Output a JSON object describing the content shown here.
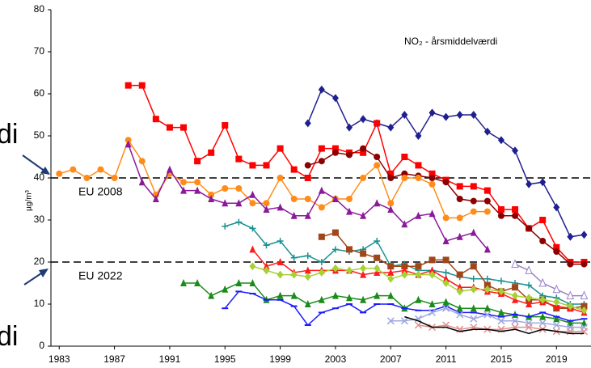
{
  "chart_data": {
    "type": "line",
    "title": "NO₂ - årsmiddelværdi",
    "y_label": "µg/m³",
    "annotations": [
      "di",
      "di"
    ],
    "hlines": [
      {
        "value": 40,
        "label": "EU 2008"
      },
      {
        "value": 20,
        "label": "EU 2022"
      }
    ],
    "xlim": [
      1982.4,
      2021.5
    ],
    "xticks": [
      1983,
      1987,
      1991,
      1995,
      1999,
      2003,
      2007,
      2011,
      2015,
      2019
    ],
    "ylim": [
      0,
      80
    ],
    "yticks": [
      0,
      10,
      20,
      30,
      40,
      50,
      60,
      70,
      80
    ],
    "x": [
      1983,
      1984,
      1985,
      1986,
      1987,
      1988,
      1989,
      1990,
      1991,
      1992,
      1993,
      1994,
      1995,
      1996,
      1997,
      1998,
      1999,
      2000,
      2001,
      2002,
      2003,
      2004,
      2005,
      2006,
      2007,
      2008,
      2009,
      2010,
      2011,
      2012,
      2013,
      2014,
      2015,
      2016,
      2017,
      2018,
      2019,
      2020,
      2021
    ],
    "series": [
      {
        "color": "#1f1f8f",
        "marker": "diamond",
        "values": [
          null,
          null,
          null,
          null,
          null,
          null,
          null,
          null,
          null,
          null,
          null,
          null,
          null,
          null,
          null,
          null,
          null,
          null,
          53,
          61,
          59,
          52,
          54,
          53,
          52,
          55,
          50,
          55.5,
          54.5,
          55,
          55,
          51,
          49,
          46.5,
          38.5,
          39,
          33,
          26,
          26.5
        ]
      },
      {
        "color": "#ff0000",
        "marker": "square",
        "values": [
          null,
          null,
          null,
          null,
          null,
          62,
          62,
          54,
          52,
          52,
          44,
          46,
          52.5,
          44.5,
          43,
          43,
          47,
          42,
          40,
          47,
          47,
          46,
          46,
          53,
          41,
          45,
          43,
          41,
          39.5,
          38,
          38,
          37,
          32.5,
          32.5,
          28,
          30,
          23.5,
          20,
          20
        ]
      },
      {
        "color": "#8b0000",
        "marker": "circle",
        "values": [
          null,
          null,
          null,
          null,
          null,
          null,
          null,
          null,
          null,
          null,
          null,
          null,
          null,
          null,
          null,
          null,
          null,
          null,
          43,
          44,
          46,
          45.5,
          47,
          45,
          40,
          41,
          40.5,
          40,
          39,
          35,
          34.5,
          34.5,
          31,
          31,
          28,
          25,
          22.5,
          19.5,
          19.5
        ]
      },
      {
        "color": "#ff8c1a",
        "marker": "circle",
        "values": [
          41,
          42,
          40,
          42,
          40,
          49,
          44,
          36,
          41,
          39,
          39,
          36,
          37.5,
          37.5,
          34,
          34,
          40,
          35,
          35,
          33,
          35,
          35,
          40,
          43,
          34,
          40,
          40,
          38.5,
          30.5,
          30.5,
          32,
          32,
          null,
          null,
          null,
          null,
          null,
          null,
          null
        ]
      },
      {
        "color": "#8b1a9b",
        "marker": "triangle",
        "values": [
          null,
          null,
          null,
          null,
          null,
          48,
          39,
          35,
          42,
          37,
          37,
          35,
          34,
          34,
          36,
          32.5,
          33,
          31,
          31,
          37,
          35,
          32,
          31,
          34,
          32.5,
          29,
          31,
          31.5,
          25,
          26,
          27,
          23,
          null,
          null,
          null,
          null,
          null,
          null,
          null
        ]
      },
      {
        "color": "#1a9090",
        "marker": "plus",
        "values": [
          null,
          null,
          null,
          null,
          null,
          null,
          null,
          null,
          null,
          null,
          null,
          null,
          28.5,
          29.5,
          28,
          24,
          25,
          21,
          21.5,
          20,
          23,
          22.5,
          23,
          25,
          19,
          19.5,
          18,
          18,
          17.5,
          16.5,
          16,
          16,
          15.5,
          15,
          14.5,
          12,
          11.5,
          10,
          10
        ]
      },
      {
        "color": "#a0461a",
        "marker": "square",
        "values": [
          null,
          null,
          null,
          null,
          null,
          null,
          null,
          null,
          null,
          null,
          null,
          null,
          null,
          null,
          null,
          null,
          null,
          null,
          null,
          26,
          27,
          23,
          22,
          21,
          19,
          19,
          19,
          20.5,
          20.5,
          17,
          19,
          14.5,
          13,
          14,
          11,
          11,
          9,
          9,
          9.5
        ]
      },
      {
        "color": "#ff1a1a",
        "marker": "triangle",
        "values": [
          null,
          null,
          null,
          null,
          null,
          null,
          null,
          null,
          null,
          null,
          null,
          null,
          null,
          null,
          23,
          19,
          20,
          17.5,
          18,
          18,
          18,
          18,
          17,
          17.5,
          17.5,
          18,
          17,
          18,
          16,
          14,
          14,
          13,
          12.5,
          11,
          10,
          10.5,
          9.5,
          9,
          8
        ]
      },
      {
        "color": "#a6d133",
        "marker": "diamond",
        "values": [
          null,
          null,
          null,
          null,
          null,
          null,
          null,
          null,
          null,
          null,
          null,
          null,
          null,
          null,
          19,
          18,
          17,
          17,
          16.5,
          17.5,
          18.5,
          18,
          18.5,
          18.5,
          16,
          17,
          17,
          17,
          15,
          13,
          13.5,
          13.5,
          13,
          12,
          11.5,
          11,
          10.5,
          9.5,
          8.5
        ]
      },
      {
        "color": "#1a8c1a",
        "marker": "triangle",
        "values": [
          null,
          null,
          null,
          null,
          null,
          null,
          null,
          null,
          null,
          15,
          15,
          12,
          13.5,
          15,
          15,
          11,
          12,
          12,
          10,
          11,
          12,
          11.5,
          11,
          12,
          12,
          9,
          11,
          10,
          10.5,
          9,
          9,
          9,
          8,
          7.5,
          7,
          7,
          6.5,
          5.5,
          5.5
        ]
      },
      {
        "color": "#1a1aff",
        "marker": "dash",
        "values": [
          null,
          null,
          null,
          null,
          null,
          null,
          null,
          null,
          null,
          null,
          null,
          null,
          9,
          13,
          12.5,
          11,
          11,
          9.5,
          5,
          8,
          9,
          10,
          8,
          10,
          10,
          9,
          8.5,
          8.5,
          9.5,
          8,
          8,
          7.5,
          7,
          7.5,
          7,
          8,
          7,
          6,
          6.5
        ]
      },
      {
        "color": "#9b82c8",
        "marker": "open-triangle",
        "values": [
          null,
          null,
          null,
          null,
          null,
          null,
          null,
          null,
          null,
          null,
          null,
          null,
          null,
          null,
          null,
          null,
          null,
          null,
          null,
          null,
          null,
          null,
          null,
          null,
          null,
          null,
          null,
          null,
          null,
          null,
          null,
          null,
          null,
          19.5,
          18,
          15,
          13.5,
          12,
          12
        ]
      },
      {
        "color": "#a0a8e0",
        "marker": "x",
        "values": [
          null,
          null,
          null,
          null,
          null,
          null,
          null,
          null,
          null,
          null,
          null,
          null,
          null,
          null,
          null,
          null,
          null,
          null,
          null,
          null,
          null,
          null,
          null,
          null,
          6,
          6,
          6.5,
          8,
          9,
          7.5,
          6.5,
          7.5,
          6,
          6,
          5.5,
          5.5,
          5,
          4.5,
          4.5
        ]
      },
      {
        "color": "#e09090",
        "marker": "x",
        "values": [
          null,
          null,
          null,
          null,
          null,
          null,
          null,
          null,
          null,
          null,
          null,
          null,
          null,
          null,
          null,
          null,
          null,
          null,
          null,
          null,
          null,
          null,
          null,
          null,
          null,
          null,
          5,
          4.5,
          5,
          4,
          4.5,
          4,
          4,
          4.5,
          4.5,
          4,
          3.5,
          3.5,
          3.5
        ]
      },
      {
        "color": "#000000",
        "marker": "none",
        "values": [
          null,
          null,
          null,
          null,
          null,
          null,
          null,
          null,
          null,
          null,
          null,
          null,
          null,
          null,
          null,
          null,
          null,
          null,
          null,
          null,
          null,
          null,
          null,
          null,
          null,
          7,
          6,
          4.5,
          4.5,
          3.5,
          4,
          4,
          3.5,
          4,
          3,
          4,
          3.5,
          3,
          3
        ]
      }
    ]
  }
}
